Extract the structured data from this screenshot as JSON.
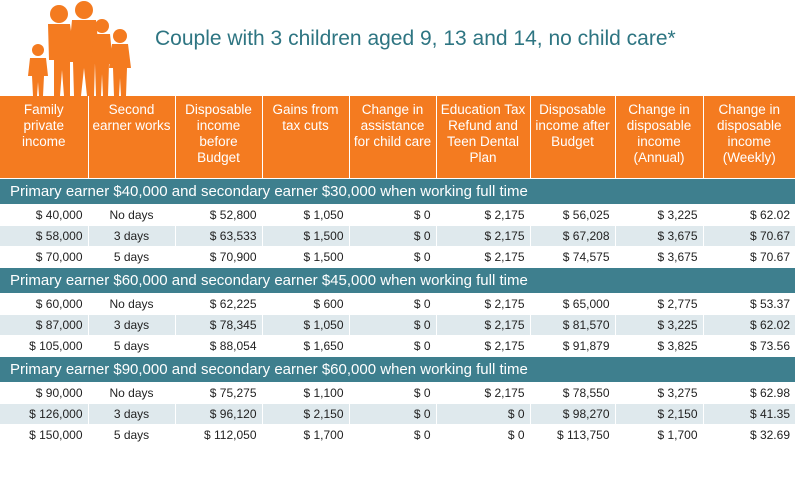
{
  "title": "Couple with 3 children aged 9, 13 and 14, no child care*",
  "colors": {
    "header_bg": "#f47b20",
    "section_bg": "#3e7f8e",
    "stripe": "#dfe9ed",
    "title": "#2e7582"
  },
  "headers": [
    "Family private income",
    "Second earner works",
    "Disposable income before Budget",
    "Gains from tax cuts",
    "Change in assistance for child care",
    "Education Tax Refund and Teen Dental Plan",
    "Disposable income after Budget",
    "Change in disposable income (Annual)",
    "Change in disposable income (Weekly)"
  ],
  "sections": [
    {
      "label": "Primary earner $40,000 and secondary earner $30,000 when working full time",
      "rows": [
        [
          "$ 40,000",
          "No days",
          "$ 52,800",
          "$ 1,050",
          "$ 0",
          "$ 2,175",
          "$ 56,025",
          "$ 3,225",
          "$ 62.02"
        ],
        [
          "$ 58,000",
          "3 days",
          "$ 63,533",
          "$ 1,500",
          "$ 0",
          "$ 2,175",
          "$ 67,208",
          "$ 3,675",
          "$ 70.67"
        ],
        [
          "$ 70,000",
          "5 days",
          "$ 70,900",
          "$ 1,500",
          "$ 0",
          "$ 2,175",
          "$ 74,575",
          "$ 3,675",
          "$ 70.67"
        ]
      ]
    },
    {
      "label": "Primary earner $60,000 and secondary earner $45,000 when working full time",
      "rows": [
        [
          "$ 60,000",
          "No days",
          "$ 62,225",
          "$ 600",
          "$ 0",
          "$ 2,175",
          "$ 65,000",
          "$ 2,775",
          "$ 53.37"
        ],
        [
          "$ 87,000",
          "3 days",
          "$ 78,345",
          "$ 1,050",
          "$ 0",
          "$ 2,175",
          "$ 81,570",
          "$ 3,225",
          "$ 62.02"
        ],
        [
          "$ 105,000",
          "5 days",
          "$ 88,054",
          "$ 1,650",
          "$ 0",
          "$ 2,175",
          "$ 91,879",
          "$ 3,825",
          "$ 73.56"
        ]
      ]
    },
    {
      "label": "Primary earner $90,000 and secondary earner $60,000 when working full time",
      "rows": [
        [
          "$ 90,000",
          "No days",
          "$ 75,275",
          "$ 1,100",
          "$ 0",
          "$ 2,175",
          "$ 78,550",
          "$ 3,275",
          "$ 62.98"
        ],
        [
          "$ 126,000",
          "3 days",
          "$ 96,120",
          "$ 2,150",
          "$ 0",
          "$ 0",
          "$ 98,270",
          "$ 2,150",
          "$ 41.35"
        ],
        [
          "$ 150,000",
          "5 days",
          "$ 112,050",
          "$ 1,700",
          "$ 0",
          "$ 0",
          "$ 113,750",
          "$ 1,700",
          "$ 32.69"
        ]
      ]
    }
  ]
}
